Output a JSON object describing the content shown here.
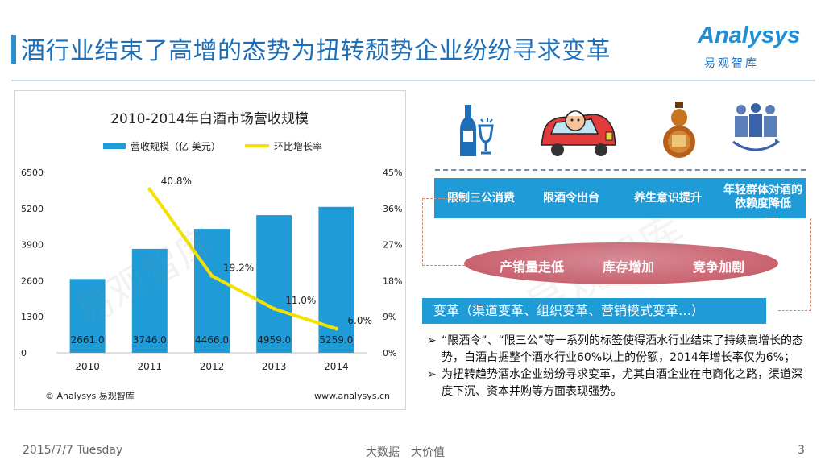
{
  "page_title": "酒行业结束了高增的态势为扭转颓势企业纷纷寻求变革",
  "logo": {
    "main": "Analysys",
    "sub": "易观智库"
  },
  "chart_data": {
    "type": "bar",
    "title": "2010-2014年白酒市场营收规模",
    "categories": [
      "2010",
      "2011",
      "2012",
      "2013",
      "2014"
    ],
    "series": [
      {
        "name": "营收规模（亿 美元）",
        "type": "bar",
        "axis": "left",
        "color": "#1f9bd7",
        "values": [
          2661.0,
          3746.0,
          4466.0,
          4959.0,
          5259.0
        ],
        "labels": [
          "2661.0",
          "3746.0",
          "4466.0",
          "4959.0",
          "5259.0"
        ]
      },
      {
        "name": "环比增长率",
        "type": "line",
        "axis": "right",
        "color": "#f5e100",
        "values": [
          null,
          40.8,
          19.2,
          11.0,
          6.0
        ],
        "labels": [
          "",
          "40.8%",
          "19.2%",
          "11.0%",
          "6.0%"
        ]
      }
    ],
    "y_left": {
      "min": 0,
      "max": 6500,
      "ticks": [
        "0",
        "1300",
        "2600",
        "3900",
        "5200",
        "6500"
      ]
    },
    "y_right": {
      "min": 0,
      "max": 45,
      "ticks": [
        "0%",
        "9%",
        "18%",
        "27%",
        "36%",
        "45%"
      ]
    },
    "source": "© Analysys 易观智库",
    "url": "www.analysys.cn",
    "watermark": "易观智库"
  },
  "icons": [
    "liquor-bottle-icon",
    "driver-car-icon",
    "liquor-gourd-icon",
    "people-cycle-icon"
  ],
  "factors": [
    "限制三公消费",
    "限酒令出台",
    "养生意识提升",
    "年轻群体对酒的依赖度降低"
  ],
  "effects": [
    "产销量走低",
    "库存增加",
    "竞争加剧"
  ],
  "change_text": "变革（渠道变革、组织变革、营销模式变革…）",
  "bullets": [
    "“限酒令”、“限三公”等一系列的标签使得酒水行业结束了持续高增长的态势，白酒占据整个酒水行业60%以上的份额，2014年增长率仅为6%；",
    "为扭转趋势酒水企业纷纷寻求变革，尤其白酒企业在电商化之路，渠道深度下沉、资本并购等方面表现强势。"
  ],
  "bullet_marker": "➢",
  "watermark_text": "易观智库",
  "footer": {
    "date": "2015/7/7 Tuesday",
    "slogan": "大数据　大价值",
    "page": "3"
  }
}
